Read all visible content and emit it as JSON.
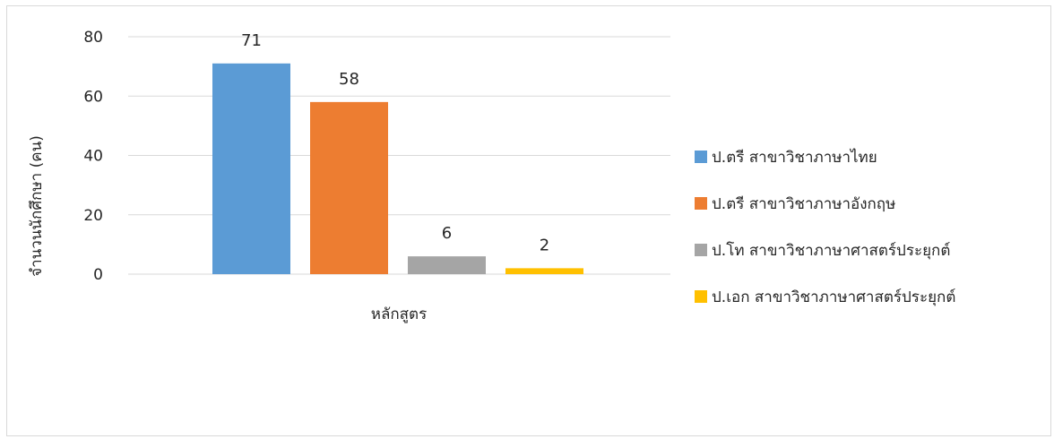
{
  "chart_data": {
    "type": "bar",
    "categories": [
      "หลักสูตร"
    ],
    "xlabel": "หลักสูตร",
    "ylabel": "จำนวนนักศึกษา (คน)",
    "ylim": [
      0,
      80
    ],
    "yticks": [
      0,
      20,
      40,
      60,
      80
    ],
    "grid": true,
    "legend_position": "right",
    "series": [
      {
        "name": "ป.ตรี สาขาวิชาภาษาไทย",
        "values": [
          71
        ],
        "color": "#5b9bd5"
      },
      {
        "name": "ป.ตรี สาขาวิชาภาษาอังกฤษ",
        "values": [
          58
        ],
        "color": "#ed7d31"
      },
      {
        "name": "ป.โท สาขาวิชาภาษาศาสตร์ประยุกต์",
        "values": [
          6
        ],
        "color": "#a5a5a5"
      },
      {
        "name": "ป.เอก สาขาวิชาภาษาศาสตร์ประยุกต์",
        "values": [
          2
        ],
        "color": "#ffc000"
      }
    ]
  }
}
